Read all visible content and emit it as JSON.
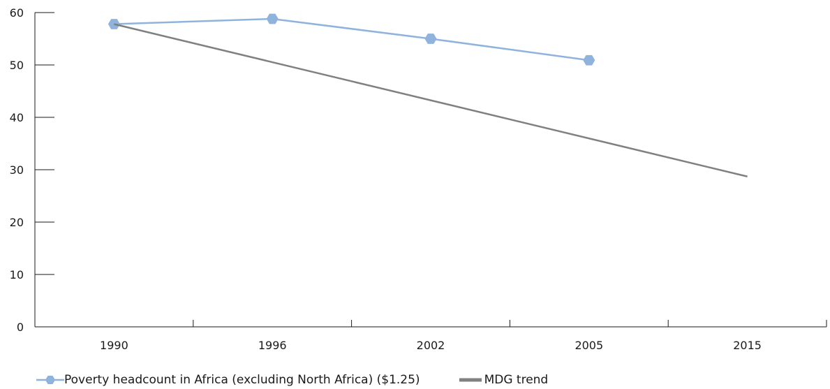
{
  "chart_data": {
    "type": "line",
    "categories": [
      "1990",
      "1996",
      "2002",
      "2005",
      "2015"
    ],
    "series": [
      {
        "name": "Poverty headcount in Africa (excluding North Africa) ($1.25)",
        "values": [
          57.8,
          58.8,
          55.0,
          50.9,
          null
        ],
        "color": "#8fb3dc",
        "marker": "hexagon"
      },
      {
        "name": "MDG trend",
        "values": [
          57.8,
          null,
          null,
          null,
          28.7
        ],
        "color": "#808080",
        "marker": "none"
      }
    ],
    "y_ticks": [
      "0",
      "10",
      "20",
      "30",
      "40",
      "50",
      "60"
    ],
    "ylim": [
      0,
      60
    ],
    "grid": false,
    "legend_position": "bottom-left"
  }
}
